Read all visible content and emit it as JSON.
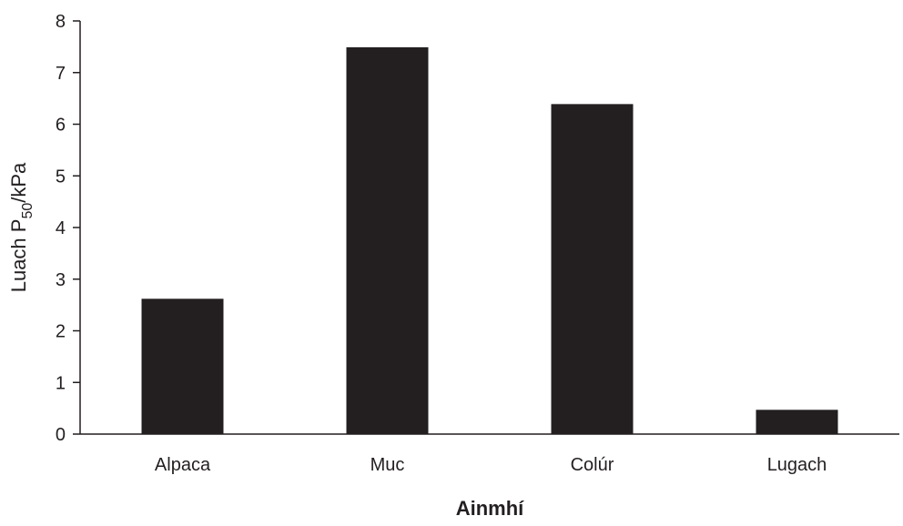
{
  "chart_data": {
    "type": "bar",
    "categories": [
      "Alpaca",
      "Muc",
      "Colúr",
      "Lugach"
    ],
    "values": [
      2.62,
      7.49,
      6.39,
      0.47
    ],
    "title": "",
    "xlabel": "Ainmhí",
    "ylabel": {
      "prefix": "Luach P",
      "subscript": "50",
      "suffix": "/kPa"
    },
    "ylim": [
      0,
      8
    ],
    "yticks": [
      "0",
      "1",
      "2",
      "3",
      "4",
      "5",
      "6",
      "7",
      "8"
    ],
    "grid": false,
    "legend": "none",
    "colors": {
      "bar": "#231f20",
      "axis": "#231f20",
      "text": "#231f20"
    }
  }
}
